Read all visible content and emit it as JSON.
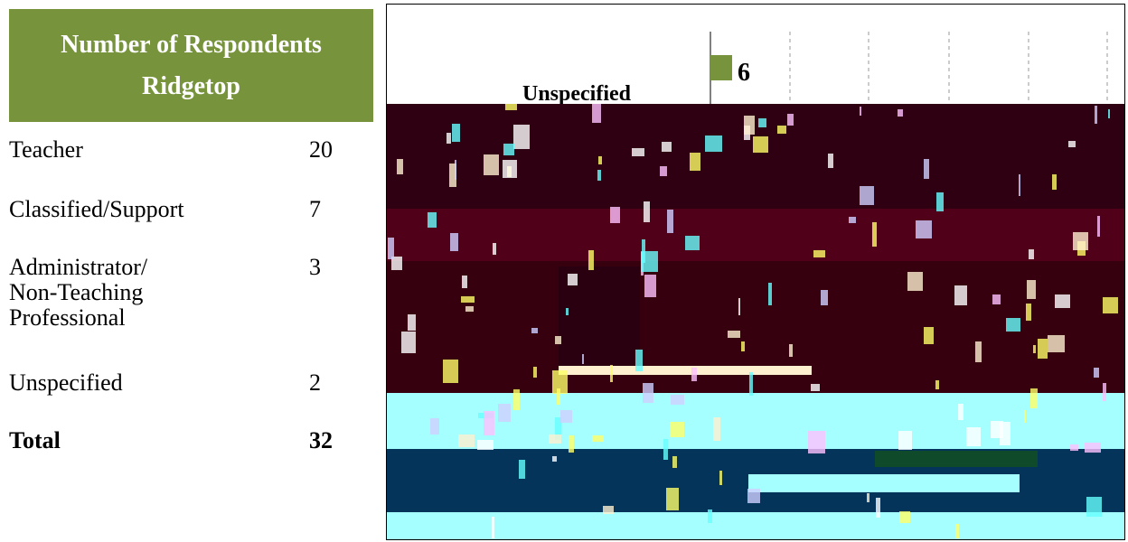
{
  "table": {
    "header_line1": "Number of Respondents",
    "header_line2": "Ridgetop",
    "rows": [
      {
        "label_lines": [
          "Teacher"
        ],
        "value": "20"
      },
      {
        "label_lines": [
          "Classified/Support"
        ],
        "value": "7"
      },
      {
        "label_lines": [
          "Administrator/",
          "Non-Teaching",
          "Professional"
        ],
        "value": "3"
      },
      {
        "label_lines": [
          "Unspecified"
        ],
        "value": "2"
      }
    ],
    "total_label": "Total",
    "total_value": "32"
  },
  "chart": {
    "visible_category": "Unspecified",
    "visible_value": "6",
    "bar_color": "#77933c",
    "band_colors": [
      "#2e0012",
      "#3b0414",
      "#51001a",
      "#36000f",
      "#a6ffff",
      "#04345a"
    ]
  }
}
